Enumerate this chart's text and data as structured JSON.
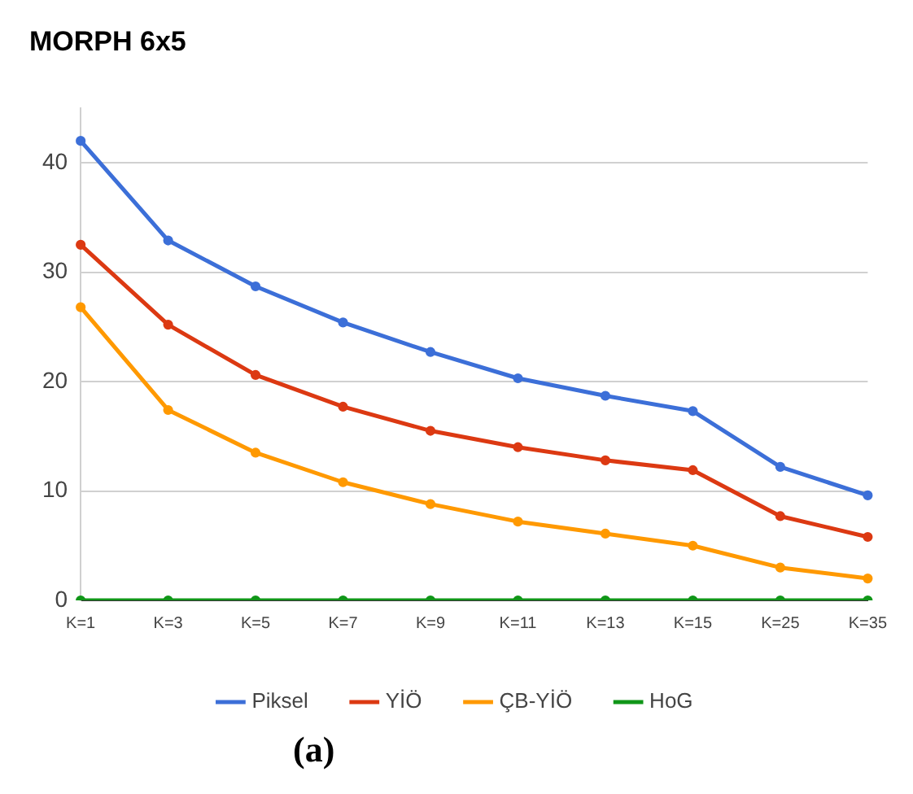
{
  "chart_data": {
    "type": "line",
    "title": "MORPH 6x5",
    "categories": [
      "K=1",
      "K=3",
      "K=5",
      "K=7",
      "K=9",
      "K=11",
      "K=13",
      "K=15",
      "K=25",
      "K=35"
    ],
    "series": [
      {
        "name": "Piksel",
        "color": "#3c6fd8",
        "values": [
          42.0,
          32.9,
          28.7,
          25.4,
          22.7,
          20.3,
          18.7,
          17.3,
          12.2,
          9.6
        ]
      },
      {
        "name": "YİÖ",
        "color": "#dc3912",
        "values": [
          32.5,
          25.2,
          20.6,
          17.7,
          15.5,
          14.0,
          12.8,
          11.9,
          7.7,
          5.8
        ]
      },
      {
        "name": "ÇB-YİÖ",
        "color": "#ff9900",
        "values": [
          26.8,
          17.4,
          13.5,
          10.8,
          8.8,
          7.2,
          6.1,
          5.0,
          3.0,
          2.0
        ]
      },
      {
        "name": "HoG",
        "color": "#109618",
        "values": [
          0,
          0,
          0,
          0,
          0,
          0,
          0,
          0,
          0,
          0
        ]
      }
    ],
    "ylim": [
      0,
      45
    ],
    "yticks": [
      0,
      10,
      20,
      30,
      40
    ],
    "grid": "y",
    "legend": "bottom",
    "marker": "circle",
    "line_style": "solid",
    "annotations": [
      "(a)"
    ]
  }
}
